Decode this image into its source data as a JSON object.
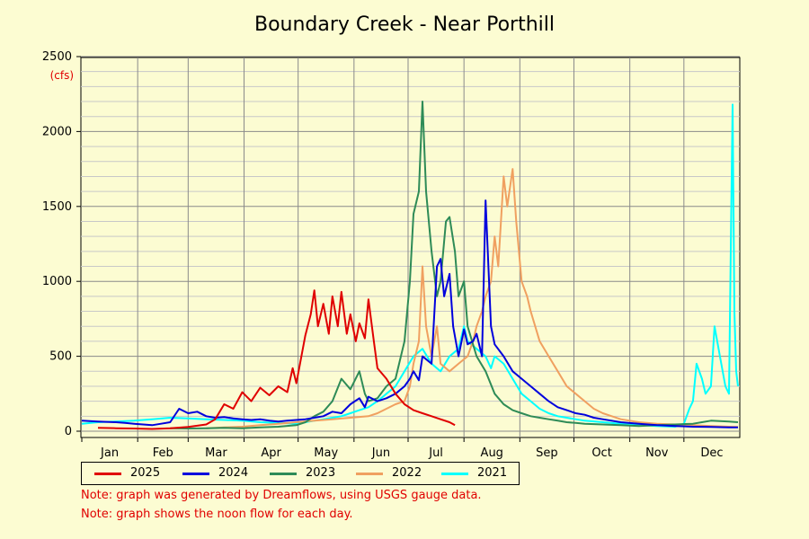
{
  "chart_data": {
    "type": "line",
    "title": "Boundary Creek - Near Porthill",
    "ylabel": "(cfs)",
    "xlabel": "",
    "ylim": [
      0,
      2500
    ],
    "yticks": [
      0,
      500,
      1000,
      1500,
      2000,
      2500
    ],
    "months": [
      "Jan",
      "Feb",
      "Mar",
      "Apr",
      "May",
      "Jun",
      "Jul",
      "Aug",
      "Sep",
      "Oct",
      "Nov",
      "Dec"
    ],
    "grid": true,
    "legend_position": "bottom",
    "series": [
      {
        "name": "2025",
        "color": "#e00000",
        "points": [
          [
            10,
            22
          ],
          [
            20,
            20
          ],
          [
            30,
            18
          ],
          [
            40,
            15
          ],
          [
            50,
            20
          ],
          [
            60,
            28
          ],
          [
            70,
            45
          ],
          [
            75,
            80
          ],
          [
            80,
            180
          ],
          [
            85,
            150
          ],
          [
            90,
            260
          ],
          [
            95,
            200
          ],
          [
            100,
            290
          ],
          [
            105,
            240
          ],
          [
            110,
            300
          ],
          [
            115,
            260
          ],
          [
            118,
            420
          ],
          [
            120,
            320
          ],
          [
            125,
            640
          ],
          [
            128,
            780
          ],
          [
            130,
            940
          ],
          [
            132,
            700
          ],
          [
            135,
            850
          ],
          [
            138,
            650
          ],
          [
            140,
            900
          ],
          [
            143,
            700
          ],
          [
            145,
            930
          ],
          [
            148,
            650
          ],
          [
            150,
            780
          ],
          [
            153,
            600
          ],
          [
            155,
            720
          ],
          [
            158,
            620
          ],
          [
            160,
            880
          ],
          [
            163,
            600
          ],
          [
            165,
            420
          ],
          [
            170,
            350
          ],
          [
            175,
            250
          ],
          [
            180,
            180
          ],
          [
            185,
            140
          ],
          [
            190,
            120
          ],
          [
            195,
            100
          ],
          [
            200,
            80
          ],
          [
            205,
            60
          ],
          [
            208,
            40
          ]
        ]
      },
      {
        "name": "2024",
        "color": "#0000dd",
        "points": [
          [
            1,
            70
          ],
          [
            10,
            65
          ],
          [
            20,
            60
          ],
          [
            25,
            55
          ],
          [
            30,
            50
          ],
          [
            35,
            45
          ],
          [
            40,
            40
          ],
          [
            45,
            50
          ],
          [
            50,
            60
          ],
          [
            55,
            150
          ],
          [
            60,
            120
          ],
          [
            65,
            130
          ],
          [
            70,
            100
          ],
          [
            75,
            90
          ],
          [
            80,
            95
          ],
          [
            85,
            85
          ],
          [
            90,
            80
          ],
          [
            95,
            75
          ],
          [
            100,
            80
          ],
          [
            105,
            70
          ],
          [
            110,
            65
          ],
          [
            115,
            70
          ],
          [
            120,
            75
          ],
          [
            125,
            80
          ],
          [
            130,
            90
          ],
          [
            135,
            100
          ],
          [
            140,
            130
          ],
          [
            145,
            120
          ],
          [
            150,
            180
          ],
          [
            155,
            220
          ],
          [
            158,
            160
          ],
          [
            160,
            230
          ],
          [
            165,
            200
          ],
          [
            170,
            220
          ],
          [
            175,
            250
          ],
          [
            180,
            300
          ],
          [
            183,
            350
          ],
          [
            185,
            400
          ],
          [
            188,
            340
          ],
          [
            190,
            500
          ],
          [
            195,
            450
          ],
          [
            198,
            1100
          ],
          [
            200,
            1150
          ],
          [
            202,
            900
          ],
          [
            205,
            1050
          ],
          [
            207,
            700
          ],
          [
            210,
            500
          ],
          [
            213,
            680
          ],
          [
            215,
            580
          ],
          [
            218,
            600
          ],
          [
            220,
            650
          ],
          [
            223,
            500
          ],
          [
            225,
            1540
          ],
          [
            228,
            700
          ],
          [
            230,
            580
          ],
          [
            235,
            500
          ],
          [
            240,
            400
          ],
          [
            245,
            350
          ],
          [
            250,
            300
          ],
          [
            255,
            250
          ],
          [
            260,
            200
          ],
          [
            265,
            160
          ],
          [
            270,
            140
          ],
          [
            275,
            120
          ],
          [
            280,
            110
          ],
          [
            285,
            90
          ],
          [
            290,
            80
          ],
          [
            300,
            60
          ],
          [
            310,
            50
          ],
          [
            320,
            40
          ],
          [
            330,
            35
          ],
          [
            340,
            30
          ],
          [
            350,
            28
          ],
          [
            360,
            26
          ],
          [
            365,
            25
          ]
        ]
      },
      {
        "name": "2023",
        "color": "#2e8b57",
        "points": [
          [
            50,
            20
          ],
          [
            60,
            18
          ],
          [
            70,
            20
          ],
          [
            80,
            22
          ],
          [
            90,
            20
          ],
          [
            100,
            25
          ],
          [
            110,
            30
          ],
          [
            120,
            40
          ],
          [
            125,
            60
          ],
          [
            130,
            100
          ],
          [
            135,
            130
          ],
          [
            140,
            200
          ],
          [
            145,
            350
          ],
          [
            150,
            280
          ],
          [
            155,
            400
          ],
          [
            158,
            250
          ],
          [
            160,
            200
          ],
          [
            165,
            220
          ],
          [
            170,
            300
          ],
          [
            175,
            350
          ],
          [
            180,
            600
          ],
          [
            183,
            1000
          ],
          [
            185,
            1450
          ],
          [
            188,
            1600
          ],
          [
            190,
            2200
          ],
          [
            192,
            1600
          ],
          [
            195,
            1200
          ],
          [
            198,
            900
          ],
          [
            200,
            1000
          ],
          [
            203,
            1400
          ],
          [
            205,
            1430
          ],
          [
            208,
            1200
          ],
          [
            210,
            900
          ],
          [
            213,
            1000
          ],
          [
            215,
            700
          ],
          [
            220,
            500
          ],
          [
            225,
            400
          ],
          [
            230,
            250
          ],
          [
            235,
            180
          ],
          [
            240,
            140
          ],
          [
            245,
            120
          ],
          [
            250,
            100
          ],
          [
            255,
            90
          ],
          [
            260,
            80
          ],
          [
            265,
            70
          ],
          [
            270,
            60
          ],
          [
            275,
            55
          ],
          [
            280,
            50
          ],
          [
            290,
            45
          ],
          [
            300,
            40
          ],
          [
            310,
            35
          ],
          [
            320,
            40
          ],
          [
            330,
            45
          ],
          [
            340,
            50
          ],
          [
            345,
            60
          ],
          [
            350,
            70
          ],
          [
            360,
            65
          ],
          [
            365,
            60
          ]
        ]
      },
      {
        "name": "2022",
        "color": "#f0a060",
        "points": [
          [
            70,
            20
          ],
          [
            80,
            25
          ],
          [
            90,
            30
          ],
          [
            100,
            40
          ],
          [
            110,
            50
          ],
          [
            120,
            60
          ],
          [
            130,
            70
          ],
          [
            140,
            80
          ],
          [
            150,
            90
          ],
          [
            160,
            100
          ],
          [
            165,
            120
          ],
          [
            170,
            150
          ],
          [
            175,
            180
          ],
          [
            180,
            200
          ],
          [
            183,
            300
          ],
          [
            185,
            450
          ],
          [
            188,
            600
          ],
          [
            190,
            1100
          ],
          [
            192,
            700
          ],
          [
            195,
            500
          ],
          [
            198,
            700
          ],
          [
            200,
            450
          ],
          [
            205,
            400
          ],
          [
            210,
            450
          ],
          [
            215,
            500
          ],
          [
            218,
            600
          ],
          [
            220,
            700
          ],
          [
            223,
            800
          ],
          [
            225,
            900
          ],
          [
            228,
            1000
          ],
          [
            230,
            1300
          ],
          [
            232,
            1100
          ],
          [
            235,
            1700
          ],
          [
            237,
            1500
          ],
          [
            240,
            1750
          ],
          [
            242,
            1400
          ],
          [
            245,
            1000
          ],
          [
            248,
            900
          ],
          [
            250,
            800
          ],
          [
            255,
            600
          ],
          [
            260,
            500
          ],
          [
            265,
            400
          ],
          [
            270,
            300
          ],
          [
            275,
            250
          ],
          [
            280,
            200
          ],
          [
            285,
            150
          ],
          [
            290,
            120
          ],
          [
            295,
            100
          ],
          [
            300,
            80
          ],
          [
            310,
            60
          ],
          [
            320,
            50
          ],
          [
            330,
            45
          ],
          [
            340,
            40
          ],
          [
            350,
            35
          ],
          [
            360,
            30
          ],
          [
            365,
            28
          ]
        ]
      },
      {
        "name": "2021",
        "color": "#00ffff",
        "points": [
          [
            1,
            50
          ],
          [
            10,
            60
          ],
          [
            20,
            65
          ],
          [
            30,
            70
          ],
          [
            40,
            80
          ],
          [
            50,
            90
          ],
          [
            60,
            85
          ],
          [
            70,
            80
          ],
          [
            80,
            75
          ],
          [
            90,
            70
          ],
          [
            100,
            60
          ],
          [
            110,
            55
          ],
          [
            120,
            50
          ],
          [
            125,
            60
          ],
          [
            130,
            70
          ],
          [
            135,
            80
          ],
          [
            140,
            90
          ],
          [
            145,
            100
          ],
          [
            150,
            120
          ],
          [
            155,
            140
          ],
          [
            160,
            160
          ],
          [
            165,
            200
          ],
          [
            170,
            250
          ],
          [
            175,
            300
          ],
          [
            180,
            400
          ],
          [
            185,
            500
          ],
          [
            190,
            550
          ],
          [
            195,
            450
          ],
          [
            200,
            400
          ],
          [
            205,
            500
          ],
          [
            210,
            550
          ],
          [
            213,
            700
          ],
          [
            215,
            600
          ],
          [
            220,
            550
          ],
          [
            225,
            500
          ],
          [
            228,
            420
          ],
          [
            230,
            500
          ],
          [
            235,
            450
          ],
          [
            240,
            350
          ],
          [
            245,
            250
          ],
          [
            250,
            200
          ],
          [
            255,
            150
          ],
          [
            260,
            120
          ],
          [
            265,
            100
          ],
          [
            270,
            90
          ],
          [
            275,
            80
          ],
          [
            280,
            70
          ],
          [
            290,
            60
          ],
          [
            300,
            50
          ],
          [
            310,
            40
          ],
          [
            320,
            35
          ],
          [
            330,
            30
          ],
          [
            335,
            50
          ],
          [
            338,
            150
          ],
          [
            340,
            200
          ],
          [
            342,
            450
          ],
          [
            345,
            350
          ],
          [
            347,
            250
          ],
          [
            350,
            300
          ],
          [
            352,
            700
          ],
          [
            355,
            500
          ],
          [
            358,
            300
          ],
          [
            360,
            250
          ],
          [
            362,
            2180
          ],
          [
            363,
            800
          ],
          [
            364,
            400
          ],
          [
            365,
            300
          ]
        ]
      }
    ]
  },
  "notes": [
    "Note: graph was generated by Dreamflows, using USGS gauge data.",
    "Note: graph shows the noon flow for each day."
  ]
}
